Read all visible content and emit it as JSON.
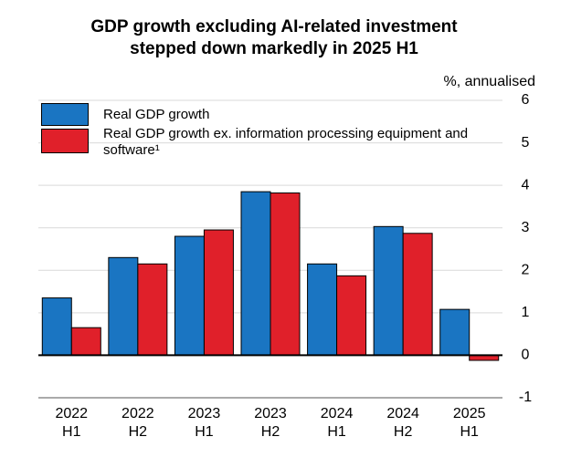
{
  "chart_data": {
    "type": "bar",
    "title": [
      "GDP growth excluding AI-related investment",
      "stepped down markedly in 2025 H1"
    ],
    "unit": "%, annualised",
    "categories": [
      [
        "2022",
        "H1"
      ],
      [
        "2022",
        "H2"
      ],
      [
        "2023",
        "H1"
      ],
      [
        "2023",
        "H2"
      ],
      [
        "2024",
        "H1"
      ],
      [
        "2024",
        "H2"
      ],
      [
        "2025",
        "H1"
      ]
    ],
    "series": [
      {
        "name": "Real GDP growth",
        "color": "#1a75c2",
        "values": [
          1.35,
          2.3,
          2.8,
          3.85,
          2.15,
          3.03,
          1.08
        ]
      },
      {
        "name": "Real GDP growth ex. information processing equipment and software¹",
        "color": "#e0202a",
        "values": [
          0.65,
          2.15,
          2.95,
          3.82,
          1.87,
          2.87,
          -0.12
        ]
      }
    ],
    "ylim": [
      -1,
      6
    ],
    "yticks": [
      -1,
      0,
      1,
      2,
      3,
      4,
      5,
      6
    ],
    "grid": true
  }
}
